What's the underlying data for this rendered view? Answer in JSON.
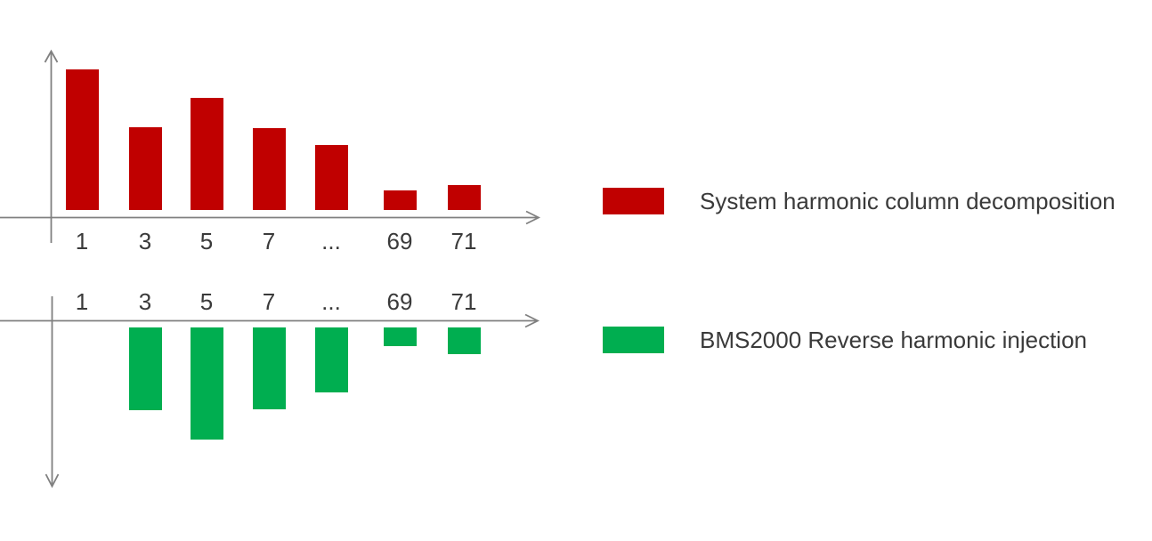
{
  "canvas": {
    "background": "#ffffff"
  },
  "colors": {
    "series_red": "#c00000",
    "series_green": "#00ae50",
    "axis": "#808080",
    "label_text": "#3a3a3a"
  },
  "legend": {
    "items": [
      {
        "key": "system",
        "color": "#c00000",
        "label": "System harmonic column decomposition"
      },
      {
        "key": "bms2000",
        "color": "#00ae50",
        "label": "BMS2000 Reverse harmonic injection"
      }
    ]
  },
  "chart_data": [
    {
      "id": "system-harmonics",
      "type": "bar",
      "name": "System harmonic column decomposition",
      "series_color": "#c00000",
      "bar_direction": "up",
      "categories": [
        "1",
        "3",
        "5",
        "7",
        "...",
        "69",
        "71"
      ],
      "values": [
        1.0,
        0.59,
        0.8,
        0.58,
        0.46,
        0.14,
        0.18
      ],
      "ylim": [
        0,
        1
      ],
      "grid": false,
      "tick_label_position": "below-axis",
      "legend_position": "right"
    },
    {
      "id": "reverse-injection",
      "type": "bar",
      "name": "BMS2000 Reverse harmonic injection",
      "series_color": "#00ae50",
      "bar_direction": "down",
      "categories": [
        "1",
        "3",
        "5",
        "7",
        "...",
        "69",
        "71"
      ],
      "values": [
        0,
        0.59,
        0.8,
        0.58,
        0.46,
        0.13,
        0.19
      ],
      "ylim": [
        0,
        1
      ],
      "grid": false,
      "tick_label_position": "above-axis",
      "legend_position": "right"
    }
  ]
}
